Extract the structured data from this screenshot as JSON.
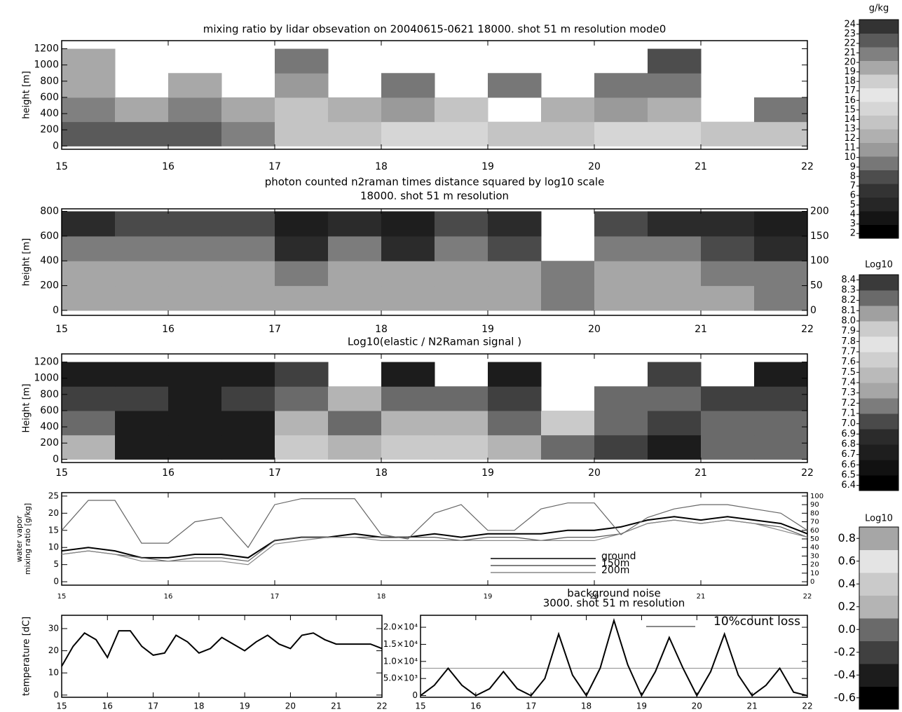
{
  "chart_data": [
    {
      "type": "heatmap",
      "title": "mixing ratio by lidar obsevation on 20040615-0621 18000. shot 51 m resolution mode0",
      "ylabel": [
        "height [m]"
      ],
      "xlim": [
        15,
        22
      ],
      "xticks": [
        15,
        16,
        17,
        18,
        19,
        20,
        21,
        22
      ],
      "ylim": [
        -40,
        1300
      ],
      "yticks": [
        0,
        200,
        400,
        600,
        800,
        1000,
        1200
      ],
      "x_edges": [
        15,
        15.5,
        16,
        16.5,
        17,
        17.5,
        18,
        18.5,
        19,
        19.5,
        20,
        20.5,
        21,
        21.5,
        22
      ],
      "y_edges": [
        0,
        300,
        600,
        900,
        1200
      ],
      "z": [
        [
          22,
          22,
          22,
          21,
          14,
          14,
          15,
          15,
          14,
          14,
          15,
          15,
          14,
          14
        ],
        [
          21,
          20,
          21,
          20,
          13,
          12,
          11,
          13,
          null,
          12,
          11,
          12,
          null,
          10
        ],
        [
          20,
          null,
          19,
          null,
          11,
          null,
          10,
          null,
          9,
          null,
          9,
          10,
          null,
          null
        ],
        [
          19,
          null,
          null,
          null,
          9,
          null,
          null,
          null,
          null,
          null,
          null,
          8,
          null,
          null
        ]
      ],
      "colorbar": {
        "title": "g/kg",
        "zlim": [
          1.5,
          24.5
        ],
        "ticks": [
          2,
          3,
          4,
          5,
          6,
          7,
          8,
          9,
          10,
          11,
          12,
          13,
          14,
          15,
          16,
          17,
          18,
          19,
          20,
          21,
          22,
          23,
          24
        ],
        "colors": [
          "#000000",
          "#141414",
          "#262626",
          "#333333",
          "#4d4d4d",
          "#777777",
          "#9a9a9a",
          "#b0b0b0",
          "#c4c4c4",
          "#d6d6d6",
          "#e6e6e6",
          "#cfcfcf",
          "#a8a8a8",
          "#808080",
          "#5a5a5a",
          "#333333"
        ]
      }
    },
    {
      "type": "heatmap",
      "title": "photon counted n2raman times distance squared by log10 scale",
      "subtitle": "18000. shot 51 m resolution",
      "ylabel": [
        "height [m]"
      ],
      "xlim": [
        15,
        22
      ],
      "xticks": [
        15,
        16,
        17,
        18,
        19,
        20,
        21,
        22
      ],
      "ylim": [
        -40,
        820
      ],
      "yticks": [
        0,
        200,
        400,
        600,
        800
      ],
      "y2lim": [
        -10,
        205
      ],
      "y2ticks": [
        0,
        50,
        100,
        150,
        200
      ],
      "x_edges": [
        15,
        15.5,
        16,
        16.5,
        17,
        17.5,
        18,
        18.5,
        19,
        19.5,
        20,
        20.5,
        21,
        21.5,
        22
      ],
      "y_edges": [
        0,
        200,
        400,
        600,
        800
      ],
      "z": [
        [
          7.3,
          7.3,
          7.3,
          7.3,
          7.3,
          7.3,
          7.3,
          7.3,
          7.3,
          7.2,
          7.3,
          7.3,
          7.3,
          7.2
        ],
        [
          7.3,
          7.3,
          7.3,
          7.3,
          7.2,
          7.3,
          7.3,
          7.3,
          7.3,
          7.2,
          7.3,
          7.3,
          7.2,
          7.1
        ],
        [
          7.1,
          7.2,
          7.2,
          7.2,
          6.9,
          7.2,
          6.9,
          7.2,
          7.0,
          null,
          7.2,
          7.2,
          7.0,
          6.9
        ],
        [
          6.9,
          7.0,
          7.0,
          7.0,
          6.7,
          6.9,
          6.7,
          7.0,
          6.8,
          null,
          7.0,
          6.9,
          6.8,
          6.7
        ]
      ],
      "colorbar": {
        "title": "Log10",
        "zlim": [
          6.35,
          8.45
        ],
        "ticks": [
          6.4,
          6.5,
          6.6,
          6.7,
          6.8,
          6.9,
          {
            "value": 7,
            "label": "7.0"
          },
          7.1,
          7.2,
          7.3,
          7.4,
          7.5,
          7.6,
          7.7,
          7.8,
          7.9,
          {
            "value": 8,
            "label": "8.0"
          },
          8.1,
          8.2,
          8.3,
          8.4
        ],
        "colors": [
          "#000000",
          "#111111",
          "#1e1e1e",
          "#2b2b2b",
          "#4a4a4a",
          "#7c7c7c",
          "#a6a6a6",
          "#bababa",
          "#cfcfcf",
          "#e3e3e3",
          "#cccccc",
          "#a0a0a0",
          "#6a6a6a",
          "#3a3a3a"
        ]
      }
    },
    {
      "type": "heatmap",
      "title": "Log10(elastic / N2Raman signal )",
      "ylabel": [
        "Height [m]"
      ],
      "xlim": [
        15,
        22
      ],
      "xticks": [
        15,
        16,
        17,
        18,
        19,
        20,
        21,
        22
      ],
      "ylim": [
        -40,
        1300
      ],
      "yticks": [
        0,
        200,
        400,
        600,
        800,
        1000,
        1200
      ],
      "x_edges": [
        15,
        15.5,
        16,
        16.5,
        17,
        17.5,
        18,
        18.5,
        19,
        19.5,
        20,
        20.5,
        21,
        21.5,
        22
      ],
      "y_edges": [
        0,
        300,
        600,
        900,
        1200
      ],
      "z": [
        [
          0.2,
          -0.4,
          -0.4,
          -0.3,
          0.3,
          0.2,
          0.3,
          0.3,
          0.2,
          0.0,
          -0.1,
          -0.4,
          0.1,
          0.1
        ],
        [
          0.0,
          -0.3,
          -0.4,
          -0.3,
          0.2,
          0.1,
          0.2,
          0.2,
          0.1,
          0.4,
          0.0,
          -0.2,
          0.1,
          0.0
        ],
        [
          -0.2,
          -0.2,
          -0.3,
          -0.2,
          0.0,
          0.2,
          0.0,
          0.1,
          -0.1,
          null,
          0.1,
          0.0,
          -0.1,
          -0.2
        ],
        [
          -0.4,
          -0.3,
          -0.3,
          -0.4,
          -0.2,
          null,
          -0.3,
          null,
          -0.3,
          null,
          null,
          -0.2,
          null,
          -0.4
        ]
      ],
      "colorbar": {
        "title": "Log10",
        "zlim": [
          -0.7,
          0.9
        ],
        "ticks": [
          -0.6,
          -0.4,
          -0.2,
          {
            "value": 0,
            "label": "0.0"
          },
          0.2,
          0.4,
          0.6,
          0.8
        ],
        "colors": [
          "#000000",
          "#1c1c1c",
          "#404040",
          "#6a6a6a",
          "#b4b4b4",
          "#cacaca",
          "#e4e4e4",
          "#a6a6a6"
        ]
      }
    },
    {
      "type": "line",
      "ylabel": [
        "water vapor",
        "mixing ratio [g/kg]"
      ],
      "xlim": [
        15,
        22
      ],
      "xticks": [
        15,
        16,
        17,
        18,
        19,
        20,
        21,
        22
      ],
      "ylim": [
        -1,
        26
      ],
      "yticks": [
        0,
        5,
        10,
        15,
        20,
        25
      ],
      "y2lim": [
        -4,
        104
      ],
      "y2ticks": [
        0,
        10,
        20,
        30,
        40,
        50,
        60,
        70,
        80,
        90,
        100
      ],
      "x": [
        15,
        15.25,
        15.5,
        15.75,
        16,
        16.25,
        16.5,
        16.75,
        17,
        17.25,
        17.5,
        17.75,
        18,
        18.25,
        18.5,
        18.75,
        19,
        19.25,
        19.5,
        19.75,
        20,
        20.25,
        20.5,
        20.75,
        21,
        21.25,
        21.5,
        21.75,
        22
      ],
      "series": [
        {
          "name": "ground",
          "color": "#000000",
          "values": [
            9,
            10,
            9,
            7,
            7,
            8,
            8,
            7,
            12,
            13,
            13,
            14,
            13,
            13,
            14,
            13,
            14,
            14,
            14,
            15,
            15,
            16,
            18,
            19,
            18,
            19,
            18,
            17,
            14
          ]
        },
        {
          "name": "150m",
          "color": "#555555",
          "values": [
            8,
            9,
            8,
            7,
            6,
            7,
            7,
            6,
            12,
            13,
            13,
            13,
            13,
            13,
            13,
            12,
            13,
            13,
            12,
            13,
            13,
            14,
            17,
            18,
            17,
            18,
            17,
            16,
            13
          ]
        },
        {
          "name": "200m",
          "color": "#888888",
          "values": [
            8,
            9,
            8,
            6,
            6,
            6,
            6,
            5,
            11,
            12,
            13,
            13,
            12,
            12,
            12,
            12,
            12,
            12,
            12,
            12,
            12,
            14,
            17,
            18,
            17,
            18,
            17,
            15,
            13
          ]
        },
        {
          "axis": "y2",
          "color": "#666666",
          "values": [
            60,
            95,
            95,
            45,
            45,
            70,
            75,
            40,
            90,
            97,
            97,
            97,
            55,
            50,
            80,
            90,
            60,
            60,
            85,
            92,
            92,
            55,
            75,
            85,
            90,
            90,
            85,
            80,
            60
          ]
        }
      ]
    },
    {
      "type": "line",
      "ylabel": [
        "temperature [dC]"
      ],
      "xlim": [
        15,
        22
      ],
      "xticks": [
        15,
        16,
        17,
        18,
        19,
        20,
        21,
        22
      ],
      "ylim": [
        -1,
        36
      ],
      "yticks": [
        0,
        10,
        20,
        30
      ],
      "x": [
        15,
        15.25,
        15.5,
        15.75,
        16,
        16.25,
        16.5,
        16.75,
        17,
        17.25,
        17.5,
        17.75,
        18,
        18.25,
        18.5,
        18.75,
        19,
        19.25,
        19.5,
        19.75,
        20,
        20.25,
        20.5,
        20.75,
        21,
        21.25,
        21.5,
        21.75,
        22
      ],
      "series": [
        {
          "color": "#000000",
          "values": [
            13,
            22,
            28,
            25,
            17,
            29,
            29,
            22,
            18,
            19,
            27,
            24,
            19,
            21,
            26,
            23,
            20,
            24,
            27,
            23,
            21,
            27,
            28,
            25,
            23,
            23,
            23,
            23,
            21
          ]
        }
      ]
    },
    {
      "type": "line",
      "title": "background noise",
      "subtitle": "3000. shot 51 m resolution",
      "xlim": [
        15,
        22
      ],
      "xticks": [
        15,
        16,
        17,
        18,
        19,
        20,
        21,
        22
      ],
      "ylim": [
        -500,
        23500
      ],
      "yticks": [
        0,
        {
          "value": 5000,
          "label": "5.0×10³"
        },
        {
          "value": 10000,
          "label": "1.0×10⁴"
        },
        {
          "value": 15000,
          "label": "1.5×10⁴"
        },
        {
          "value": 20000,
          "label": "2.0×10⁴"
        }
      ],
      "x": [
        15,
        15.25,
        15.5,
        15.75,
        16,
        16.25,
        16.5,
        16.75,
        17,
        17.25,
        17.5,
        17.75,
        18,
        18.25,
        18.5,
        18.75,
        19,
        19.25,
        19.5,
        19.75,
        20,
        20.25,
        20.5,
        20.75,
        21,
        21.25,
        21.5,
        21.75,
        22
      ],
      "series": [
        {
          "color": "#000000",
          "values": [
            0,
            3000,
            8000,
            3000,
            0,
            2000,
            7000,
            2000,
            0,
            5000,
            18000,
            6000,
            0,
            8000,
            22000,
            9000,
            0,
            7000,
            17000,
            8000,
            0,
            7000,
            18000,
            6000,
            0,
            3000,
            8000,
            1000,
            0
          ]
        }
      ],
      "reference_line": {
        "label": "10%count loss",
        "value": 8000,
        "color": "#888888"
      }
    }
  ]
}
